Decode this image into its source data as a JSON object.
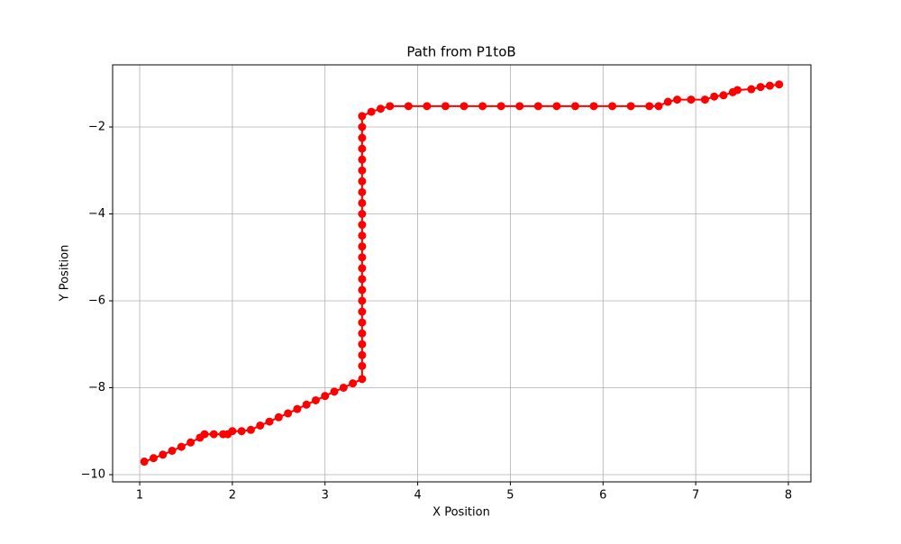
{
  "chart_data": {
    "type": "line",
    "title": "Path from P1toB",
    "x_label": "X Position",
    "y_label": "Y Position",
    "x": [
      1.05,
      1.15,
      1.25,
      1.35,
      1.45,
      1.55,
      1.65,
      1.7,
      1.8,
      1.9,
      1.95,
      2.0,
      2.1,
      2.2,
      2.3,
      2.4,
      2.5,
      2.6,
      2.7,
      2.8,
      2.9,
      3.0,
      3.1,
      3.2,
      3.3,
      3.4,
      3.4,
      3.4,
      3.4,
      3.4,
      3.4,
      3.4,
      3.4,
      3.4,
      3.4,
      3.4,
      3.4,
      3.4,
      3.4,
      3.4,
      3.4,
      3.4,
      3.4,
      3.4,
      3.4,
      3.4,
      3.4,
      3.4,
      3.4,
      3.4,
      3.5,
      3.6,
      3.7,
      3.9,
      4.1,
      4.3,
      4.5,
      4.7,
      4.9,
      5.1,
      5.3,
      5.5,
      5.7,
      5.9,
      6.1,
      6.3,
      6.5,
      6.6,
      6.7,
      6.8,
      6.95,
      7.1,
      7.2,
      7.3,
      7.4,
      7.45,
      7.6,
      7.7,
      7.8,
      7.9
    ],
    "series": [
      {
        "color": "#ff0000",
        "values": [
          -9.7,
          -9.62,
          -9.54,
          -9.45,
          -9.36,
          -9.26,
          -9.15,
          -9.07,
          -9.07,
          -9.07,
          -9.07,
          -9.0,
          -9.0,
          -8.97,
          -8.87,
          -8.78,
          -8.68,
          -8.59,
          -8.49,
          -8.39,
          -8.29,
          -8.19,
          -8.09,
          -8.0,
          -7.9,
          -7.8,
          -7.5,
          -7.25,
          -7,
          -6.75,
          -6.5,
          -6.25,
          -6,
          -5.75,
          -5.5,
          -5.25,
          -5,
          -4.75,
          -4.5,
          -4.25,
          -4,
          -3.75,
          -3.5,
          -3.25,
          -3,
          -2.75,
          -2.5,
          -2.25,
          -2,
          -1.75,
          -1.65,
          -1.58,
          -1.52,
          -1.52,
          -1.52,
          -1.52,
          -1.52,
          -1.52,
          -1.52,
          -1.52,
          -1.52,
          -1.52,
          -1.52,
          -1.52,
          -1.52,
          -1.52,
          -1.52,
          -1.52,
          -1.42,
          -1.37,
          -1.37,
          -1.37,
          -1.3,
          -1.27,
          -1.2,
          -1.15,
          -1.13,
          -1.08,
          -1.05,
          -1.02
        ]
      }
    ],
    "xlim": [
      0.708,
      8.243
    ],
    "ylim": [
      -10.166,
      -0.57
    ],
    "xticks": [
      1,
      2,
      3,
      4,
      5,
      6,
      7,
      8
    ],
    "yticks": [
      {
        "value": -10,
        "label": "−10"
      },
      {
        "value": -8,
        "label": "−8"
      },
      {
        "value": -6,
        "label": "−6"
      },
      {
        "value": -4,
        "label": "−4"
      },
      {
        "value": -2,
        "label": "−2"
      }
    ],
    "grid": true
  }
}
